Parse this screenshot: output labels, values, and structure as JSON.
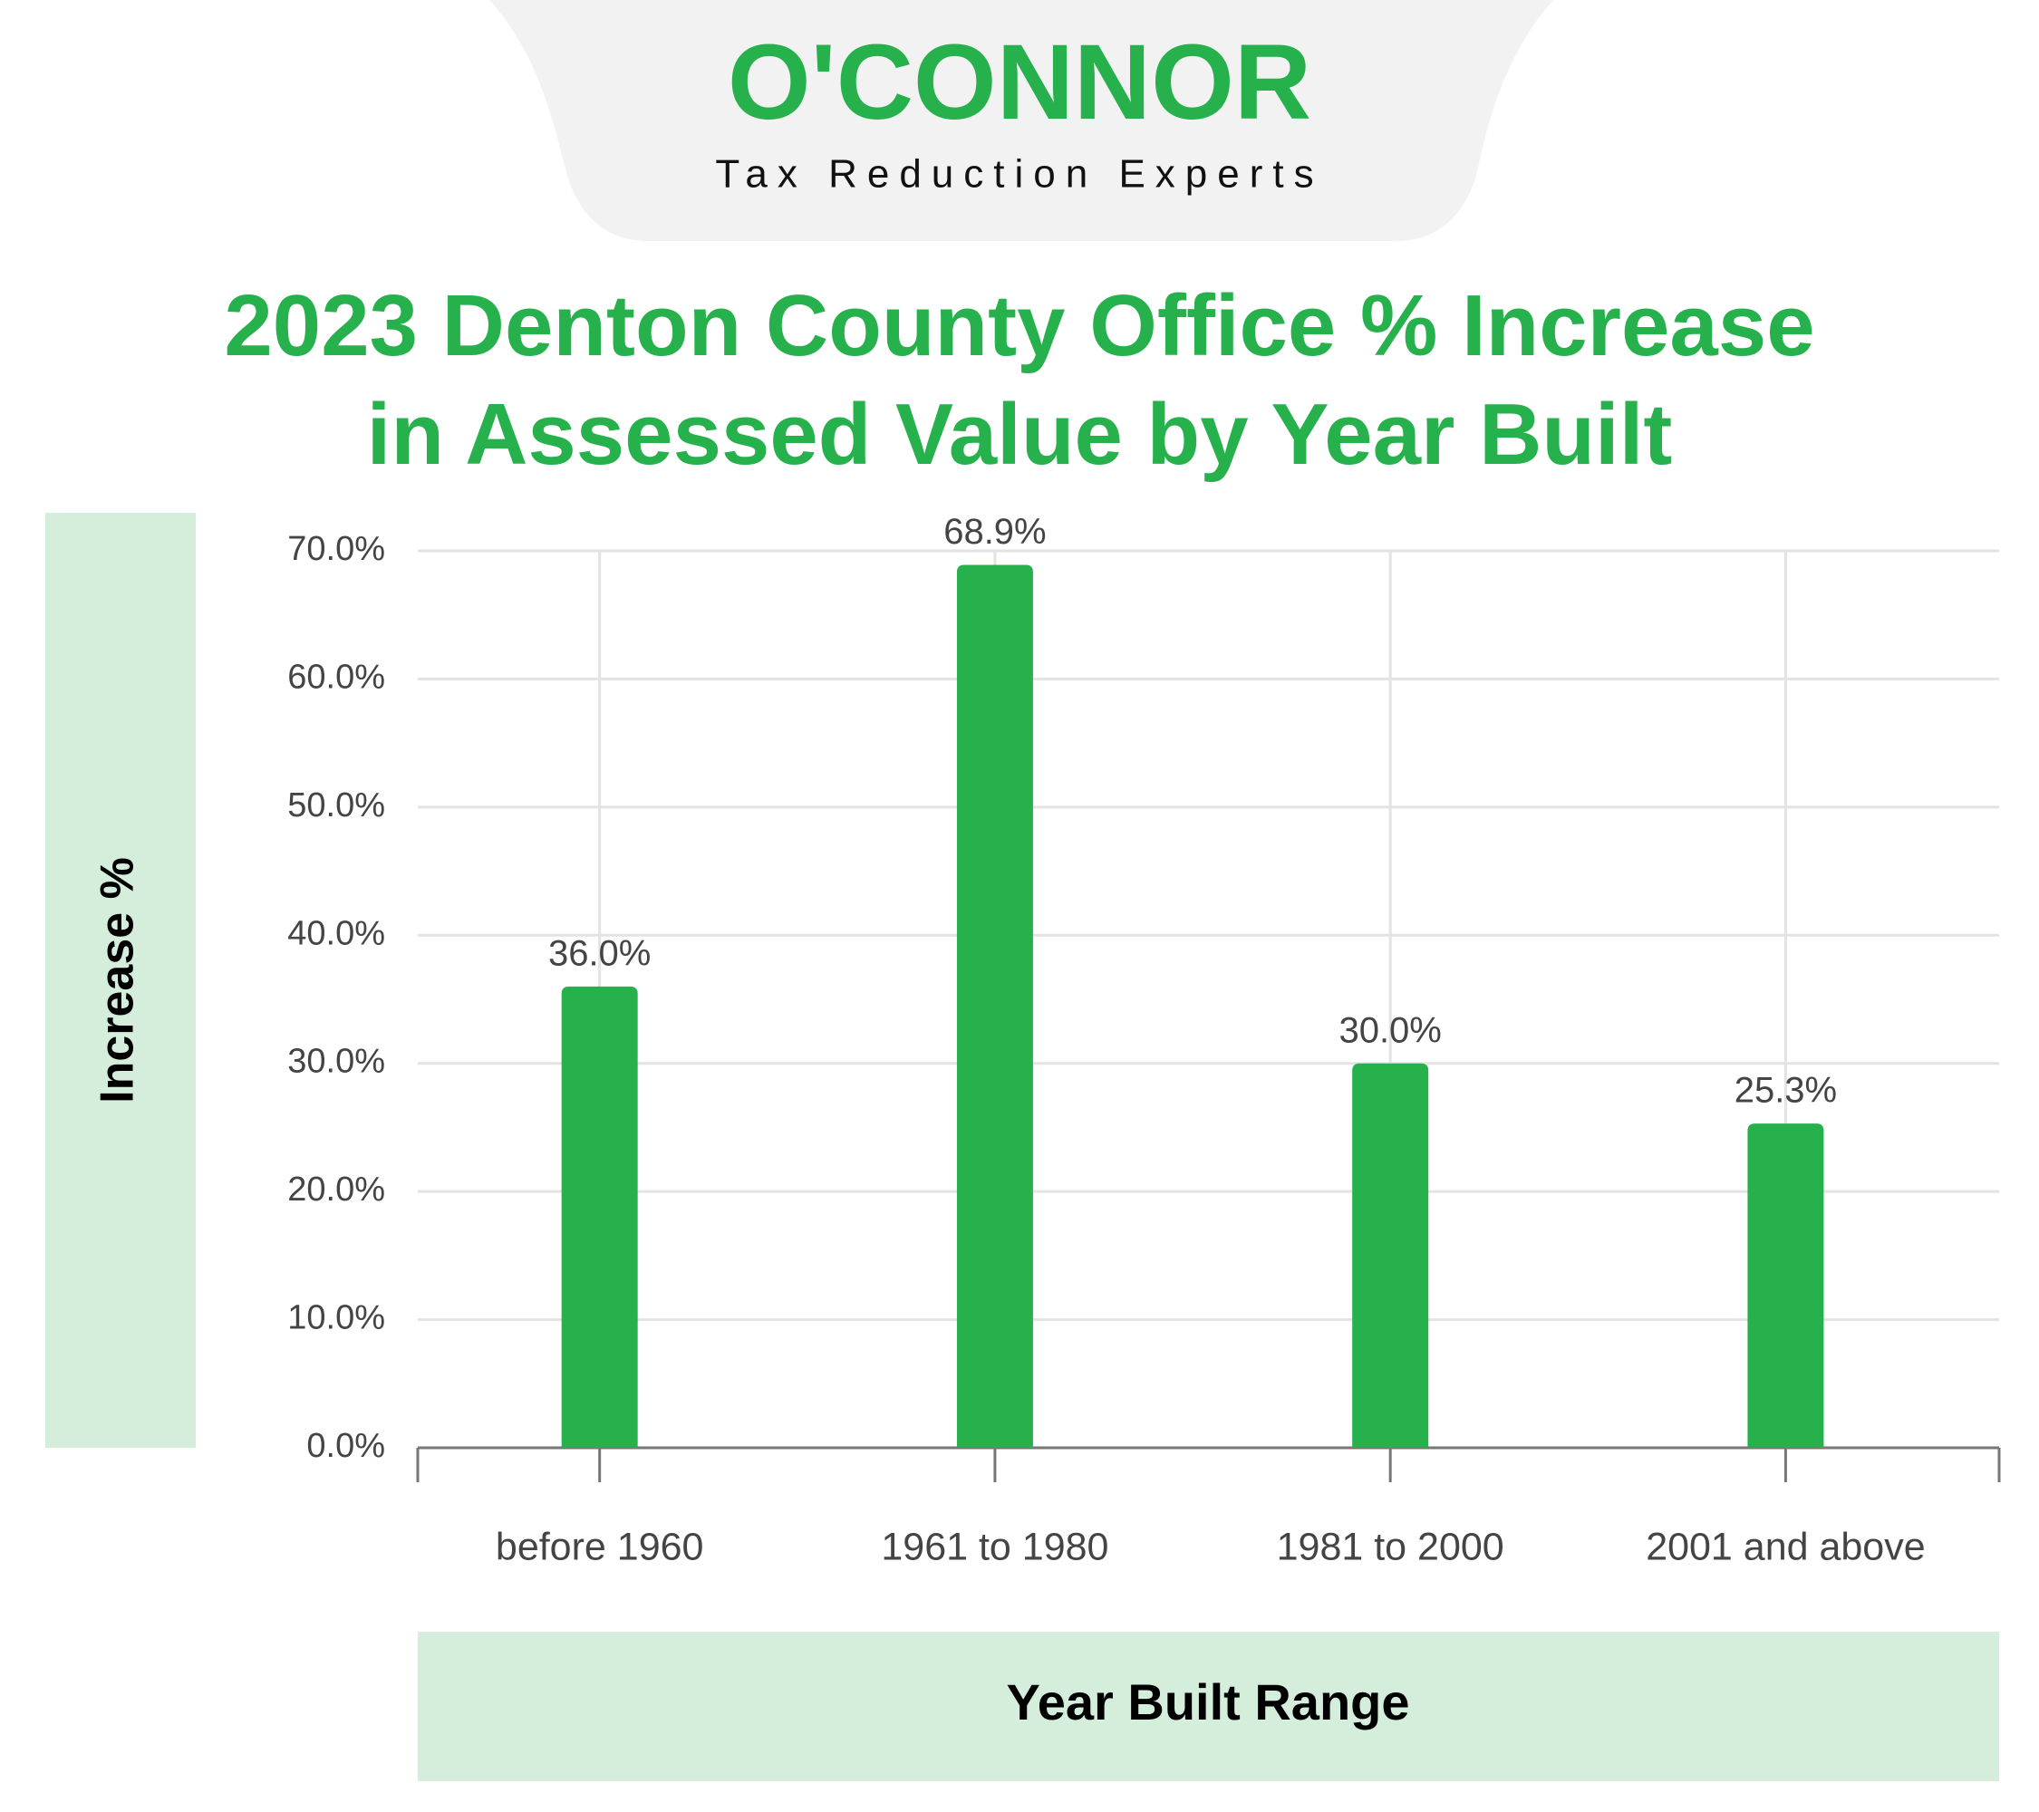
{
  "header": {
    "logo": "O'CONNOR",
    "tagline": "Tax Reduction Experts"
  },
  "chart_data": {
    "type": "bar",
    "title": "2023 Denton County Office % Increase in Assessed Value by Year Built",
    "x_label": "Year Built Range",
    "y_label": "Increase %",
    "categories": [
      "before 1960",
      "1961 to 1980",
      "1981 to 2000",
      "2001 and above"
    ],
    "values": [
      36.0,
      68.9,
      30.0,
      25.3
    ],
    "value_labels": [
      "36.0%",
      "68.9%",
      "30.0%",
      "25.3%"
    ],
    "color": "#27b14c",
    "ylim": [
      0,
      70
    ],
    "yticks": [
      {
        "value": 0,
        "label": "0.0%"
      },
      {
        "value": 10,
        "label": "10.0%"
      },
      {
        "value": 20,
        "label": "20.0%"
      },
      {
        "value": 30,
        "label": "30.0%"
      },
      {
        "value": 40,
        "label": "40.0%"
      },
      {
        "value": 50,
        "label": "50.0%"
      },
      {
        "value": 60,
        "label": "60.0%"
      },
      {
        "value": 70,
        "label": "70.0%"
      }
    ],
    "grid": true
  }
}
